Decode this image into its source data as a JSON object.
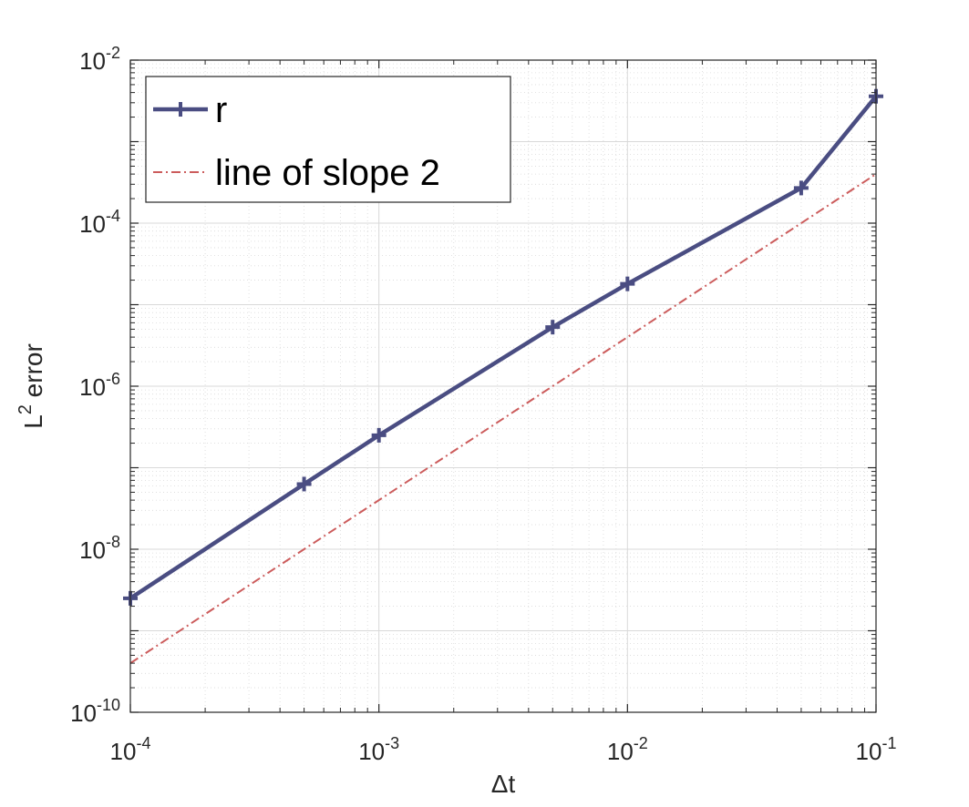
{
  "colors": {
    "series_main": "#4a4d82",
    "series_reference": "#cc5c5c",
    "grid": "#d9d9d9",
    "axis": "#262626",
    "background": "#ffffff"
  },
  "chart_data": {
    "type": "line",
    "xscale": "log",
    "yscale": "log",
    "xlim": [
      0.0001,
      0.1
    ],
    "ylim": [
      1e-10,
      0.01
    ],
    "grid": true,
    "minor_grid": true,
    "legend_position": "top-left",
    "xlabel": "Δt",
    "ylabel": "L",
    "ylabel_superscript": "2",
    "ylabel_suffix": " error",
    "x_ticks": [
      {
        "value": 0.0001,
        "base": "10",
        "exp": "-4"
      },
      {
        "value": 0.001,
        "base": "10",
        "exp": "-3"
      },
      {
        "value": 0.01,
        "base": "10",
        "exp": "-2"
      },
      {
        "value": 0.1,
        "base": "10",
        "exp": "-1"
      }
    ],
    "y_ticks": [
      {
        "value": 1e-10,
        "base": "10",
        "exp": "-10"
      },
      {
        "value": 1e-08,
        "base": "10",
        "exp": "-8"
      },
      {
        "value": 1e-06,
        "base": "10",
        "exp": "-6"
      },
      {
        "value": 0.0001,
        "base": "10",
        "exp": "-4"
      },
      {
        "value": 0.01,
        "base": "10",
        "exp": "-2"
      }
    ],
    "series": [
      {
        "name": "r",
        "style": "solid",
        "marker": "plus",
        "x": [
          0.0001,
          0.0005,
          0.001,
          0.005,
          0.01,
          0.05,
          0.1
        ],
        "y": [
          2.5e-09,
          6.3e-08,
          2.5e-07,
          5.3e-06,
          1.8e-05,
          0.00027,
          0.0036
        ]
      },
      {
        "name": "line of slope 2",
        "style": "dashdot",
        "marker": "none",
        "x": [
          0.0001,
          0.1
        ],
        "y": [
          4e-10,
          0.0004
        ]
      }
    ]
  }
}
